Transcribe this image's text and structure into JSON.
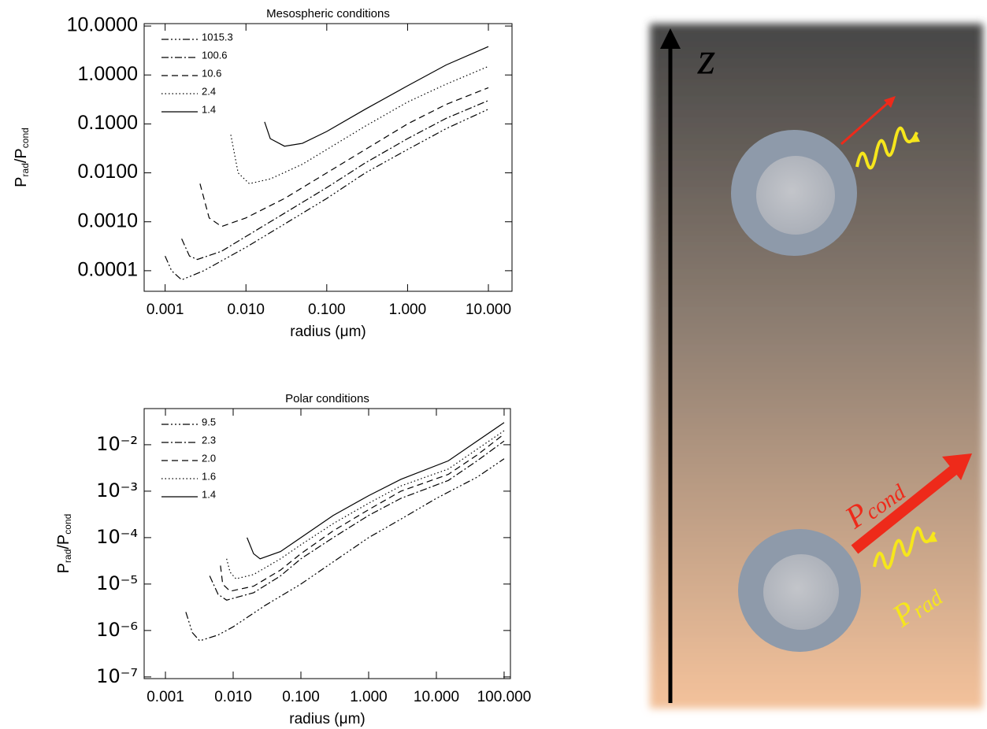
{
  "chart_data": [
    {
      "type": "line",
      "title": "Mesospheric conditions",
      "xlabel": "radius (μm)",
      "ylabel": [
        "P",
        "rad",
        "/P",
        "cond"
      ],
      "xscale": "log",
      "yscale": "log",
      "xlim": [
        0.00055,
        19.6
      ],
      "ylim": [
        3.8e-05,
        11.2
      ],
      "xticks": [
        0.001,
        {
          "value": 0.01,
          "label": "0.010"
        },
        {
          "value": 0.1,
          "label": "0.100"
        },
        {
          "value": 1,
          "label": "1.000"
        },
        {
          "value": 10,
          "label": "10.000"
        }
      ],
      "yticks": [
        {
          "value": 10,
          "label": "10.0000"
        },
        {
          "value": 1,
          "label": "1.0000"
        },
        {
          "value": 0.1,
          "label": "0.1000"
        },
        {
          "value": 0.01,
          "label": "0.0100"
        },
        {
          "value": 0.001,
          "label": "0.0010"
        },
        0.0001
      ],
      "legend": "upper left",
      "series": [
        {
          "name": "1015.3",
          "color": "#000000",
          "linestyle": "dash-dot-dot-dot",
          "x": [
            0.001,
            0.0012,
            0.0016,
            0.003,
            0.01,
            0.03,
            0.1,
            0.3,
            1,
            3,
            10
          ],
          "values": [
            0.0002,
            0.0001,
            6.5e-05,
            0.0001,
            0.0003,
            0.0009,
            0.003,
            0.01,
            0.03,
            0.08,
            0.2
          ]
        },
        {
          "name": "100.6",
          "color": "#000000",
          "linestyle": "dash-dot",
          "x": [
            0.0016,
            0.002,
            0.0025,
            0.005,
            0.01,
            0.03,
            0.1,
            0.3,
            1,
            3,
            10
          ],
          "values": [
            0.00045,
            0.0002,
            0.00017,
            0.00025,
            0.0005,
            0.0015,
            0.005,
            0.016,
            0.05,
            0.13,
            0.3
          ]
        },
        {
          "name": "10.6",
          "color": "#000000",
          "linestyle": "dashed",
          "x": [
            0.0027,
            0.0035,
            0.005,
            0.01,
            0.03,
            0.1,
            0.3,
            1,
            3,
            10
          ],
          "values": [
            0.006,
            0.0012,
            0.0008,
            0.0012,
            0.003,
            0.01,
            0.03,
            0.1,
            0.25,
            0.55
          ]
        },
        {
          "name": "2.4",
          "color": "#000000",
          "linestyle": "dotted",
          "x": [
            0.0065,
            0.008,
            0.011,
            0.02,
            0.05,
            0.1,
            0.3,
            1,
            3,
            10
          ],
          "values": [
            0.06,
            0.01,
            0.006,
            0.0075,
            0.015,
            0.03,
            0.09,
            0.28,
            0.65,
            1.5
          ]
        },
        {
          "name": "1.4",
          "color": "#000000",
          "linestyle": "solid",
          "x": [
            0.017,
            0.02,
            0.03,
            0.05,
            0.1,
            0.3,
            1,
            3,
            10
          ],
          "values": [
            0.11,
            0.05,
            0.035,
            0.04,
            0.07,
            0.2,
            0.6,
            1.6,
            3.8
          ]
        }
      ]
    },
    {
      "type": "line",
      "title": "Polar conditions",
      "xlabel": "radius (μm)",
      "ylabel": [
        "P",
        "rad",
        "/P",
        "cond"
      ],
      "xscale": "log",
      "yscale": "log",
      "xlim": [
        0.000485,
        124
      ],
      "ylim": [
        9.2e-08,
        0.06
      ],
      "xticks": [
        0.001,
        {
          "value": 0.01,
          "label": "0.010"
        },
        {
          "value": 0.1,
          "label": "0.100"
        },
        {
          "value": 1,
          "label": "1.000"
        },
        {
          "value": 10,
          "label": "10.000"
        },
        {
          "value": 100,
          "label": "100.000"
        }
      ],
      "yticks": [
        {
          "value": 0.01,
          "label": "10⁻²"
        },
        {
          "value": 0.001,
          "label": "10⁻³"
        },
        {
          "value": 0.0001,
          "label": "10⁻⁴"
        },
        {
          "value": 1e-05,
          "label": "10⁻⁵"
        },
        {
          "value": 1e-06,
          "label": "10⁻⁶"
        },
        {
          "value": 1e-07,
          "label": "10⁻⁷"
        }
      ],
      "legend": "upper left",
      "series": [
        {
          "name": "9.5",
          "color": "#000000",
          "linestyle": "dash-dot-dot-dot",
          "x": [
            0.002,
            0.0025,
            0.0032,
            0.006,
            0.01,
            0.03,
            0.1,
            0.3,
            1,
            3,
            10,
            40,
            100
          ],
          "values": [
            2.5e-06,
            9e-07,
            6e-07,
            8e-07,
            1.2e-06,
            3.5e-06,
            1e-05,
            3e-05,
            0.0001,
            0.00025,
            0.0007,
            0.002,
            0.005
          ]
        },
        {
          "name": "2.3",
          "color": "#000000",
          "linestyle": "dash-dot",
          "x": [
            0.0045,
            0.006,
            0.008,
            0.02,
            0.05,
            0.1,
            0.3,
            1,
            3,
            15,
            40,
            100
          ],
          "values": [
            1.5e-05,
            6e-06,
            4.5e-06,
            6.5e-06,
            1.5e-05,
            3.5e-05,
            0.0001,
            0.0003,
            0.0007,
            0.0017,
            0.0045,
            0.012
          ]
        },
        {
          "name": "2.0",
          "color": "#000000",
          "linestyle": "dashed",
          "x": [
            0.0065,
            0.007,
            0.009,
            0.02,
            0.05,
            0.1,
            0.3,
            1,
            3,
            15,
            40,
            100
          ],
          "values": [
            2.5e-05,
            1e-05,
            7e-06,
            9e-06,
            2e-05,
            4.5e-05,
            0.00014,
            0.0004,
            0.001,
            0.0023,
            0.006,
            0.017
          ]
        },
        {
          "name": "1.6",
          "color": "#000000",
          "linestyle": "dotted",
          "x": [
            0.008,
            0.009,
            0.011,
            0.02,
            0.05,
            0.1,
            0.3,
            1,
            3,
            15,
            40,
            100
          ],
          "values": [
            3.5e-05,
            1.8e-05,
            1.3e-05,
            1.6e-05,
            3.5e-05,
            7e-05,
            0.0002,
            0.00055,
            0.0013,
            0.003,
            0.008,
            0.02
          ]
        },
        {
          "name": "1.4",
          "color": "#000000",
          "linestyle": "solid",
          "x": [
            0.016,
            0.02,
            0.025,
            0.05,
            0.1,
            0.3,
            1,
            3,
            15,
            40,
            100
          ],
          "values": [
            0.0001,
            4.5e-05,
            3.5e-05,
            5e-05,
            0.0001,
            0.0003,
            0.0008,
            0.0018,
            0.0045,
            0.012,
            0.03
          ]
        }
      ]
    }
  ],
  "illustration": {
    "axis_label": "z",
    "cond": [
      "P",
      "cond"
    ],
    "rad": [
      "P",
      "rad"
    ]
  }
}
